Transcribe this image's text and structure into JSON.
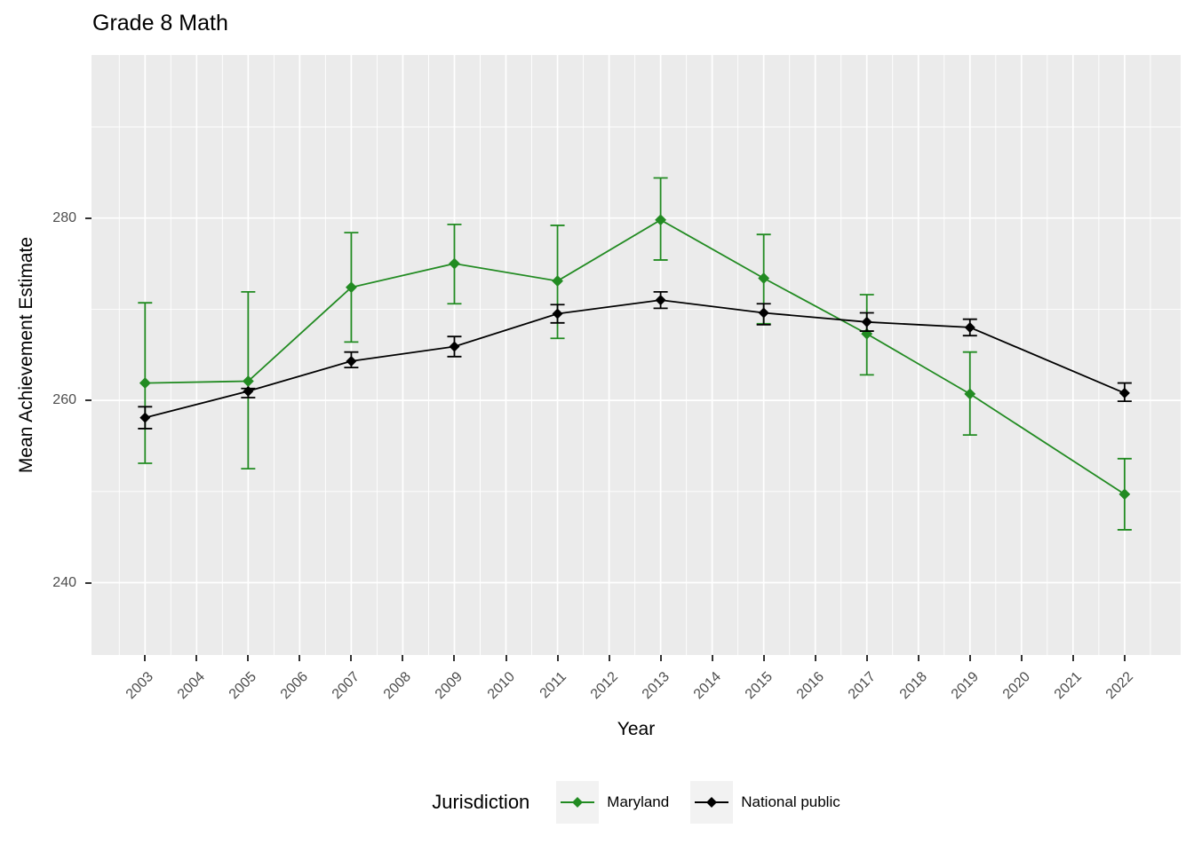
{
  "title": "Grade 8 Math",
  "axes": {
    "x_label": "Year",
    "y_label": "Mean Achievement Estimate",
    "x_ticks": [
      2003,
      2004,
      2005,
      2006,
      2007,
      2008,
      2009,
      2010,
      2011,
      2012,
      2013,
      2014,
      2015,
      2016,
      2017,
      2018,
      2019,
      2020,
      2021,
      2022
    ],
    "y_ticks": [
      280,
      260,
      240
    ],
    "y_minor_ticks": [
      290,
      270,
      250
    ]
  },
  "legend": {
    "title": "Jurisdiction",
    "entries": [
      {
        "label": "Maryland",
        "color": "#228B22"
      },
      {
        "label": "National public",
        "color": "#000000"
      }
    ]
  },
  "colors": {
    "panel_background": "#EBEBEB",
    "gridline": "#FFFFFF",
    "tick_text": "#4D4D4D",
    "maryland_green": "#228B22",
    "national_black": "#000000"
  },
  "chart_data": {
    "type": "line",
    "title": "Grade 8 Math",
    "xlabel": "Year",
    "ylabel": "Mean Achievement Estimate",
    "x": [
      2003,
      2005,
      2007,
      2009,
      2011,
      2013,
      2015,
      2017,
      2019,
      2022
    ],
    "series": [
      {
        "name": "Maryland",
        "color": "#228B22",
        "values": [
          261.9,
          262.1,
          272.4,
          275.0,
          273.1,
          279.8,
          273.4,
          267.3,
          260.7,
          249.7
        ],
        "ci_low": [
          253.1,
          252.5,
          266.4,
          270.6,
          266.8,
          275.4,
          268.4,
          262.8,
          256.2,
          245.8
        ],
        "ci_high": [
          270.7,
          271.9,
          278.4,
          279.3,
          279.2,
          284.4,
          278.2,
          271.6,
          265.3,
          253.6
        ]
      },
      {
        "name": "National public",
        "color": "#000000",
        "values": [
          258.1,
          261.0,
          264.3,
          265.9,
          269.5,
          271.0,
          269.6,
          268.6,
          268.0,
          260.8
        ],
        "ci_low": [
          256.9,
          260.3,
          263.6,
          264.8,
          268.5,
          270.1,
          268.3,
          267.6,
          267.1,
          259.9
        ],
        "ci_high": [
          259.3,
          261.3,
          265.3,
          267.0,
          270.5,
          271.9,
          270.6,
          269.6,
          268.9,
          261.9
        ]
      }
    ],
    "error_bars": true,
    "marker": "diamond",
    "ylim": [
      232,
      298
    ],
    "xlim": [
      2002,
      2023.1
    ],
    "x_tick_labels": [
      "2003",
      "2004",
      "2005",
      "2006",
      "2007",
      "2008",
      "2009",
      "2010",
      "2011",
      "2012",
      "2013",
      "2014",
      "2015",
      "2016",
      "2017",
      "2018",
      "2019",
      "2020",
      "2021",
      "2022"
    ],
    "grid": "major-and-minor, white on gray panel",
    "legend_position": "bottom"
  }
}
